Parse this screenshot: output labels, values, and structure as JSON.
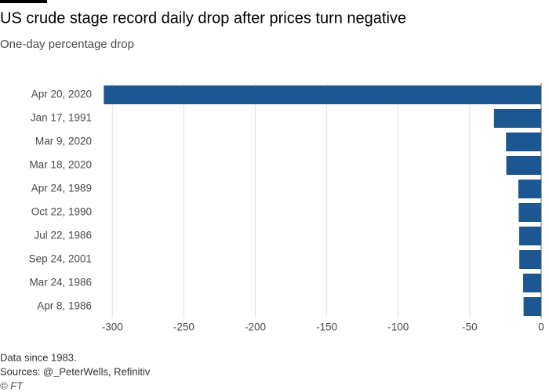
{
  "chart_data": {
    "type": "hbar",
    "title": "US crude stage record daily drop after prices turn negative",
    "subtitle": "One-day percentage drop",
    "categories": [
      "Apr 20, 2020",
      "Jan 17, 1991",
      "Mar 9, 2020",
      "Mar 18, 2020",
      "Apr 24, 1989",
      "Oct 22, 1990",
      "Jul 22, 1986",
      "Sep 24, 2001",
      "Mar 24, 1986",
      "Apr 8, 1986"
    ],
    "values": [
      -306,
      -33,
      -24.6,
      -24.4,
      -16,
      -15.7,
      -15.4,
      -15.3,
      -12.6,
      -12.3
    ],
    "color": "#1d5791",
    "xlim": [
      -321,
      0
    ],
    "xticks": [
      -300,
      -250,
      -200,
      -150,
      -100,
      -50,
      0
    ],
    "grid": true,
    "notes": [
      "Data since 1983.",
      "Sources: @_PeterWells, Refinitiv"
    ],
    "credit": "© FT"
  }
}
